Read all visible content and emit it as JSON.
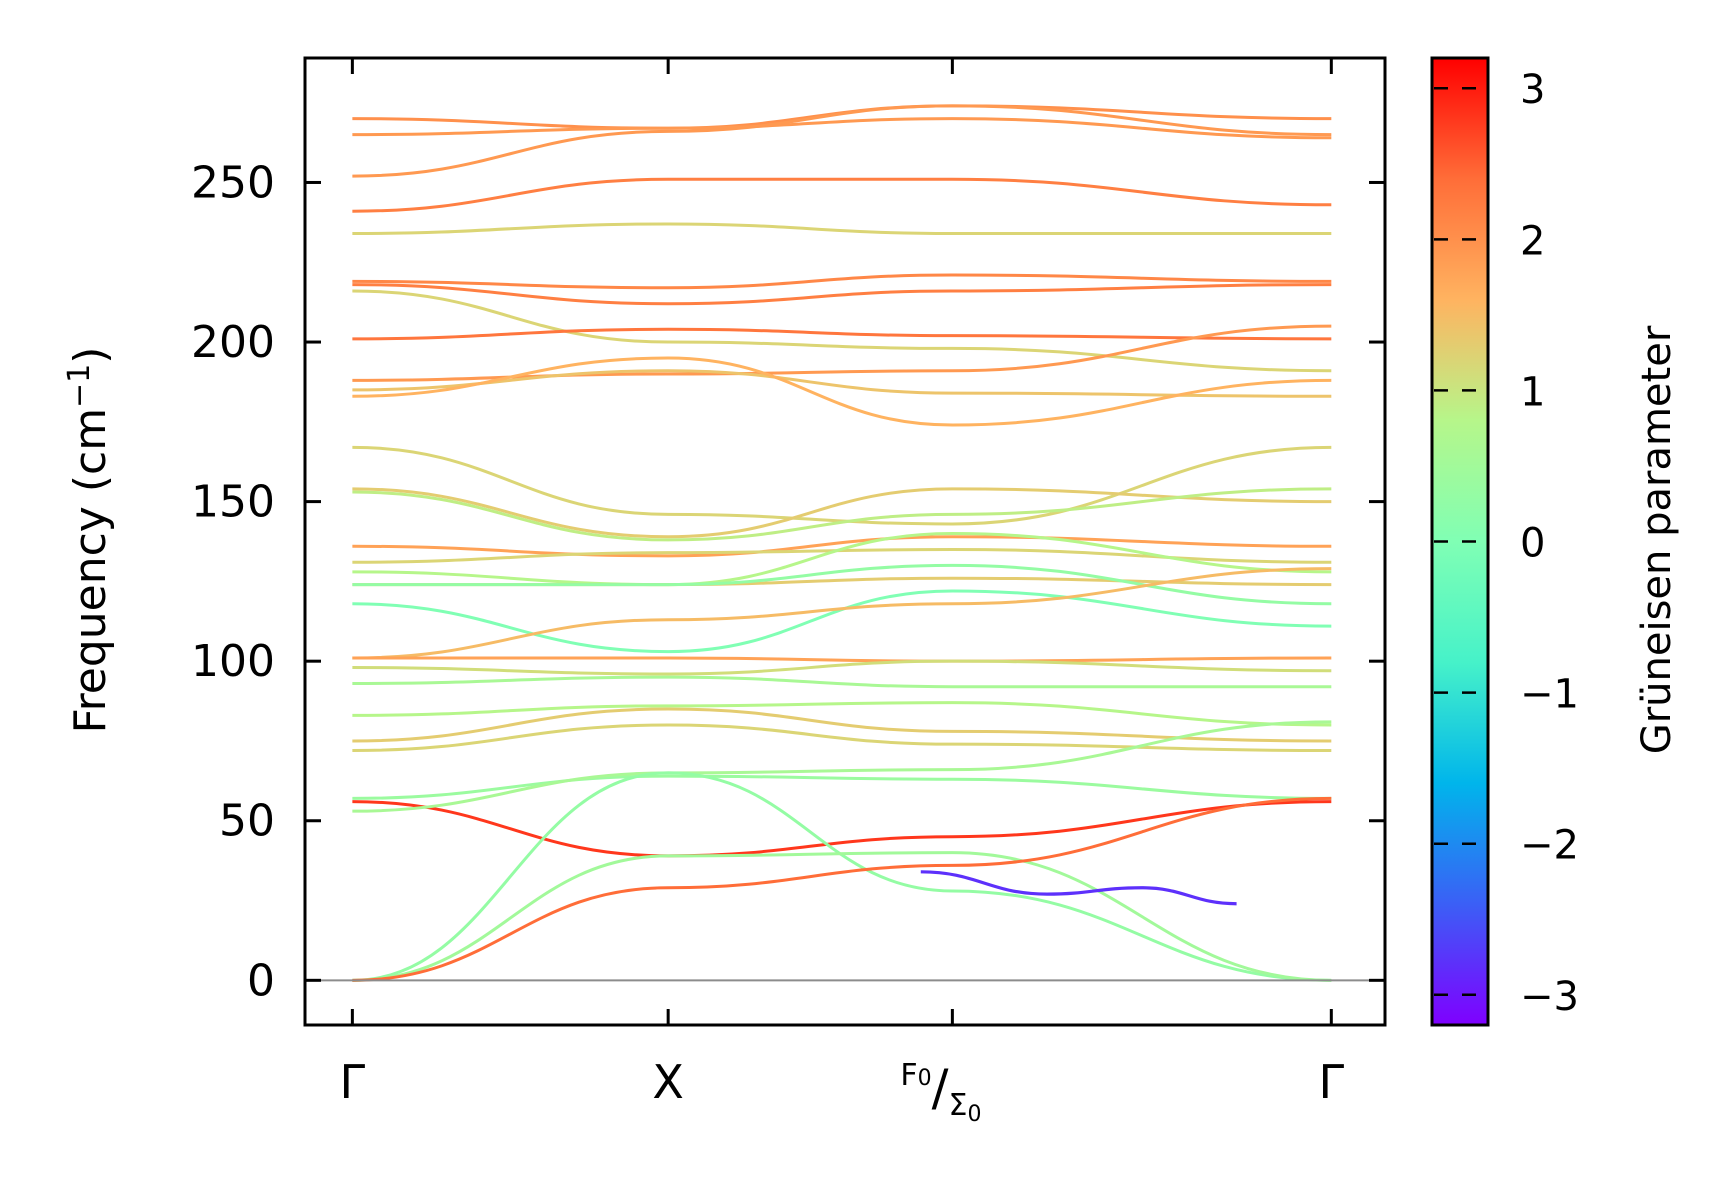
{
  "chart_data": {
    "type": "line",
    "ylabel": "Frequency (cm",
    "ylabel_sup": "−1",
    "ylabel_close": ")",
    "ylim": [
      -14,
      289
    ],
    "yticks": [
      0,
      50,
      100,
      150,
      200,
      250
    ],
    "xlim": [
      -0.15,
      3.27
    ],
    "kpoints": [
      {
        "x": 0,
        "label": "Γ"
      },
      {
        "x": 1,
        "label": "X"
      },
      {
        "x": 1.9,
        "label": "F₀/Σ₀"
      },
      {
        "x": 3.1,
        "label": "Γ"
      }
    ],
    "kpoint_label_parts": {
      "f": "F",
      "sub1": "0",
      "slash": "/",
      "sigma": "Σ",
      "sub2": "0"
    },
    "colorbar": {
      "label": "Grüneisen parameter",
      "range": [
        -3.2,
        3.2
      ],
      "ticks": [
        -3,
        -2,
        -1,
        0,
        1,
        2,
        3
      ],
      "tick_labels": [
        "−3",
        "−2",
        "−1",
        "0",
        "1",
        "2",
        "3"
      ],
      "stops": [
        "#7f00ff",
        "#3b5ff6",
        "#00b5eb",
        "#46f2c9",
        "#80ffb4",
        "#b6f68a",
        "#ffb360",
        "#ff6d38",
        "#ff0000"
      ]
    },
    "series": [
      {
        "x": [
          0,
          1,
          1.9,
          3.1
        ],
        "values": [
          270,
          267,
          274,
          270
        ],
        "g": 2.0
      },
      {
        "x": [
          0,
          1,
          1.9,
          3.1
        ],
        "values": [
          265,
          267,
          270,
          264
        ],
        "g": 1.9
      },
      {
        "x": [
          0,
          1,
          1.9,
          3.1
        ],
        "values": [
          252,
          266,
          274,
          265
        ],
        "g": 1.9
      },
      {
        "x": [
          0,
          1,
          1.9,
          3.1
        ],
        "values": [
          241,
          251,
          251,
          243
        ],
        "g": 2.2
      },
      {
        "x": [
          0,
          1,
          1.9,
          3.1
        ],
        "values": [
          234,
          237,
          234,
          234
        ],
        "g": 1.2
      },
      {
        "x": [
          0,
          1,
          1.9,
          3.1
        ],
        "values": [
          219,
          217,
          221,
          219
        ],
        "g": 2.1
      },
      {
        "x": [
          0,
          1,
          1.9,
          3.1
        ],
        "values": [
          218,
          212,
          216,
          218
        ],
        "g": 2.2
      },
      {
        "x": [
          0,
          1,
          1.9,
          3.1
        ],
        "values": [
          216,
          200,
          198,
          191
        ],
        "g": 1.2
      },
      {
        "x": [
          0,
          1,
          1.9,
          3.1
        ],
        "values": [
          201,
          204,
          202,
          201
        ],
        "g": 2.3
      },
      {
        "x": [
          0,
          1,
          1.9,
          3.1
        ],
        "values": [
          188,
          190,
          191,
          205
        ],
        "g": 1.9
      },
      {
        "x": [
          0,
          1,
          1.9,
          3.1
        ],
        "values": [
          185,
          191,
          184,
          183
        ],
        "g": 1.4
      },
      {
        "x": [
          0,
          1,
          1.9,
          3.1
        ],
        "values": [
          183,
          195,
          174,
          188
        ],
        "g": 1.6
      },
      {
        "x": [
          0,
          1,
          1.9,
          3.1
        ],
        "values": [
          167,
          146,
          143,
          167
        ],
        "g": 1.2
      },
      {
        "x": [
          0,
          1,
          1.9,
          3.1
        ],
        "values": [
          154,
          139,
          154,
          150
        ],
        "g": 1.3
      },
      {
        "x": [
          0,
          1,
          1.9,
          3.1
        ],
        "values": [
          153,
          138,
          146,
          154
        ],
        "g": 0.9
      },
      {
        "x": [
          0,
          1,
          1.9,
          3.1
        ],
        "values": [
          136,
          133,
          139,
          136
        ],
        "g": 1.8
      },
      {
        "x": [
          0,
          1,
          1.9,
          3.1
        ],
        "values": [
          131,
          134,
          135,
          131
        ],
        "g": 1.2
      },
      {
        "x": [
          0,
          1,
          1.9,
          3.1
        ],
        "values": [
          128,
          124,
          140,
          128
        ],
        "g": 0.8
      },
      {
        "x": [
          0,
          1,
          1.9,
          3.1
        ],
        "values": [
          124,
          124,
          126,
          124
        ],
        "g": 1.3
      },
      {
        "x": [
          0,
          1,
          1.9,
          3.1
        ],
        "values": [
          124,
          124,
          130,
          118
        ],
        "g": 0.3
      },
      {
        "x": [
          0,
          1,
          1.9,
          3.1
        ],
        "values": [
          118,
          103,
          122,
          111
        ],
        "g": 0.0
      },
      {
        "x": [
          0,
          1,
          1.9,
          3.1
        ],
        "values": [
          101,
          113,
          118,
          129
        ],
        "g": 1.5
      },
      {
        "x": [
          0,
          1,
          1.9,
          3.1
        ],
        "values": [
          101,
          101,
          100,
          101
        ],
        "g": 1.8
      },
      {
        "x": [
          0,
          1,
          1.9,
          3.1
        ],
        "values": [
          98,
          96,
          100,
          97
        ],
        "g": 1.1
      },
      {
        "x": [
          0,
          1,
          1.9,
          3.1
        ],
        "values": [
          93,
          95,
          92,
          92
        ],
        "g": 0.6
      },
      {
        "x": [
          0,
          1,
          1.9,
          3.1
        ],
        "values": [
          83,
          86,
          87,
          80
        ],
        "g": 0.8
      },
      {
        "x": [
          0,
          1,
          1.9,
          3.1
        ],
        "values": [
          75,
          85,
          78,
          75
        ],
        "g": 1.3
      },
      {
        "x": [
          0,
          1,
          1.9,
          3.1
        ],
        "values": [
          72,
          80,
          74,
          72
        ],
        "g": 1.2
      },
      {
        "x": [
          0,
          1,
          1.9,
          3.1
        ],
        "values": [
          57,
          64,
          63,
          57
        ],
        "g": 0.4
      },
      {
        "x": [
          0,
          1,
          1.9,
          3.1
        ],
        "values": [
          56,
          39,
          45,
          56
        ],
        "g": 2.8
      },
      {
        "x": [
          0,
          1,
          1.9,
          3.1
        ],
        "values": [
          53,
          65,
          66,
          81
        ],
        "g": 0.6
      },
      {
        "x": [
          0,
          1,
          1.9,
          3.1
        ],
        "values": [
          0,
          65,
          28,
          0
        ],
        "g": 0.3
      },
      {
        "x": [
          0,
          1,
          1.9,
          3.1
        ],
        "values": [
          0,
          39,
          40,
          0
        ],
        "g": 0.5
      },
      {
        "x": [
          0,
          1,
          1.9,
          3.1
        ],
        "values": [
          0,
          29,
          36,
          57
        ],
        "g": 2.4
      }
    ],
    "negative_dip": {
      "x": [
        1.8,
        2.2,
        2.5,
        2.8
      ],
      "values": [
        34,
        27,
        29,
        24
      ],
      "g": -2.8
    },
    "zero_line": 0
  }
}
